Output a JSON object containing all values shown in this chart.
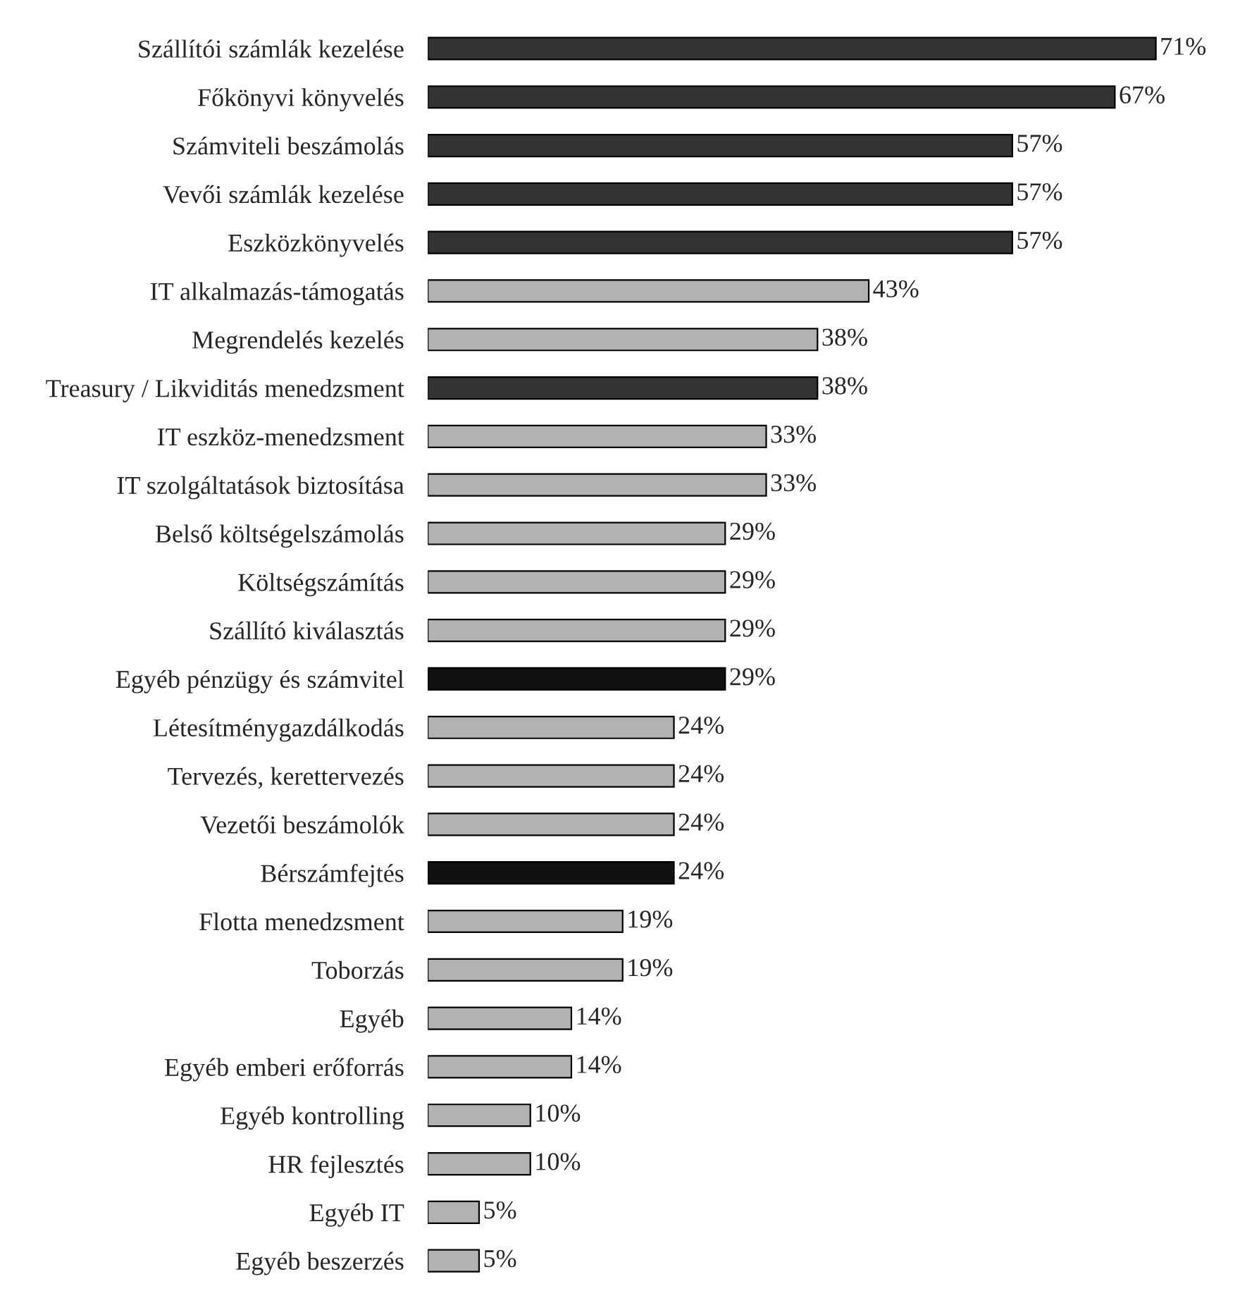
{
  "chart_data": {
    "type": "bar",
    "orientation": "horizontal",
    "grid": false,
    "legend": false,
    "tick_labels": "y",
    "value_labels": [
      "71%",
      "67%",
      "57%",
      "57%",
      "57%",
      "43%",
      "38%",
      "38%",
      "33%",
      "33%",
      "29%",
      "29%",
      "29%",
      "29%",
      "24%",
      "24%",
      "24%",
      "24%",
      "19%",
      "19%",
      "14%",
      "14%",
      "10%",
      "10%",
      "5%",
      "5%"
    ],
    "categories": [
      "Szállítói számlák kezelése",
      "Főkönyvi könyvelés",
      "Számviteli beszámolás",
      "Vevői számlák kezelése",
      "Eszközkönyvelés",
      "IT alkalmazás-támogatás",
      "Megrendelés kezelés",
      "Treasury / Likviditás menedzsment",
      "IT eszköz-menedzsment",
      "IT szolgáltatások biztosítása",
      "Belső költségelszámolás",
      "Költségszámítás",
      "Szállító kiválasztás",
      "Egyéb pénzügy és számvitel",
      "Létesítménygazdálkodás",
      "Tervezés, kerettervezés",
      "Vezetői beszámolók",
      "Bérszámfejtés",
      "Flotta menedzsment",
      "Toborzás",
      "Egyéb",
      "Egyéb emberi erőforrás",
      "Egyéb kontrolling",
      "HR fejlesztés",
      "Egyéb IT",
      "Egyéb beszerzés"
    ],
    "values": [
      71,
      67,
      57,
      57,
      57,
      43,
      38,
      38,
      33,
      33,
      29,
      29,
      29,
      29,
      24,
      24,
      24,
      24,
      19,
      19,
      14,
      14,
      10,
      10,
      5,
      5
    ],
    "colors": [
      "#333333",
      "#333333",
      "#333333",
      "#333333",
      "#333333",
      "#b2b2b2",
      "#b2b2b2",
      "#333333",
      "#b2b2b2",
      "#b2b2b2",
      "#b2b2b2",
      "#b2b2b2",
      "#b2b2b2",
      "#111111",
      "#b2b2b2",
      "#b2b2b2",
      "#b2b2b2",
      "#111111",
      "#b2b2b2",
      "#b2b2b2",
      "#b2b2b2",
      "#b2b2b2",
      "#b2b2b2",
      "#b2b2b2",
      "#b2b2b2",
      "#b2b2b2"
    ]
  }
}
